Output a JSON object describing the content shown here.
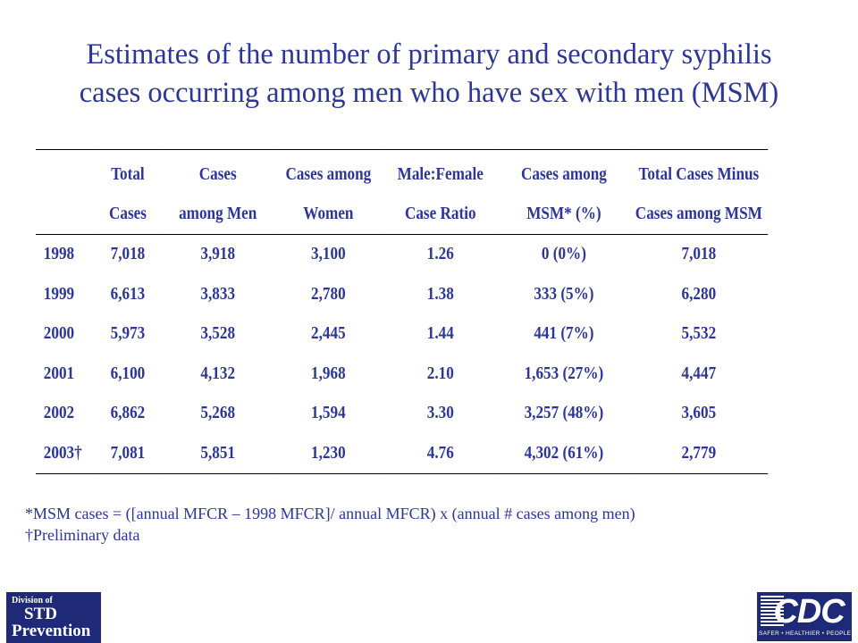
{
  "title": {
    "line1": "Estimates of the number of primary and secondary syphilis",
    "line2": "cases occurring among men who have sex with men (MSM)"
  },
  "table": {
    "headers": [
      {
        "line1": "",
        "line2": ""
      },
      {
        "line1": "Total",
        "line2": "Cases"
      },
      {
        "line1": "Cases",
        "line2": "among Men"
      },
      {
        "line1": "Cases among",
        "line2": "Women"
      },
      {
        "line1": "Male:Female",
        "line2": "Case Ratio"
      },
      {
        "line1": "Cases among",
        "line2": "MSM* (%)"
      },
      {
        "line1": "Total Cases Minus",
        "line2": "Cases among MSM"
      }
    ],
    "rows": [
      [
        "1998",
        "7,018",
        "3,918",
        "3,100",
        "1.26",
        "0 (0%)",
        "7,018"
      ],
      [
        "1999",
        "6,613",
        "3,833",
        "2,780",
        "1.38",
        "333 (5%)",
        "6,280"
      ],
      [
        "2000",
        "5,973",
        "3,528",
        "2,445",
        "1.44",
        "441 (7%)",
        "5,532"
      ],
      [
        "2001",
        "6,100",
        "4,132",
        "1,968",
        "2.10",
        "1,653 (27%)",
        "4,447"
      ],
      [
        "2002",
        "6,862",
        "5,268",
        "1,594",
        "3.30",
        "3,257 (48%)",
        "3,605"
      ],
      [
        "2003†",
        "7,081",
        "5,851",
        "1,230",
        "4.76",
        "4,302 (61%)",
        "2,779"
      ]
    ]
  },
  "footnotes": {
    "msm": "*MSM cases = ([annual MFCR – 1998 MFCR]/ annual MFCR) x (annual # cases among men)",
    "preliminary": "†Preliminary data"
  },
  "logos": {
    "std": {
      "line1": "Division of",
      "line2": "STD",
      "line3": "Prevention"
    },
    "cdc": {
      "letters": "CDC",
      "tagline": "SAFER • HEALTHIER • PEOPLE™"
    }
  },
  "colors": {
    "text": "#2c3696",
    "logo_background": "#1e2a78"
  }
}
